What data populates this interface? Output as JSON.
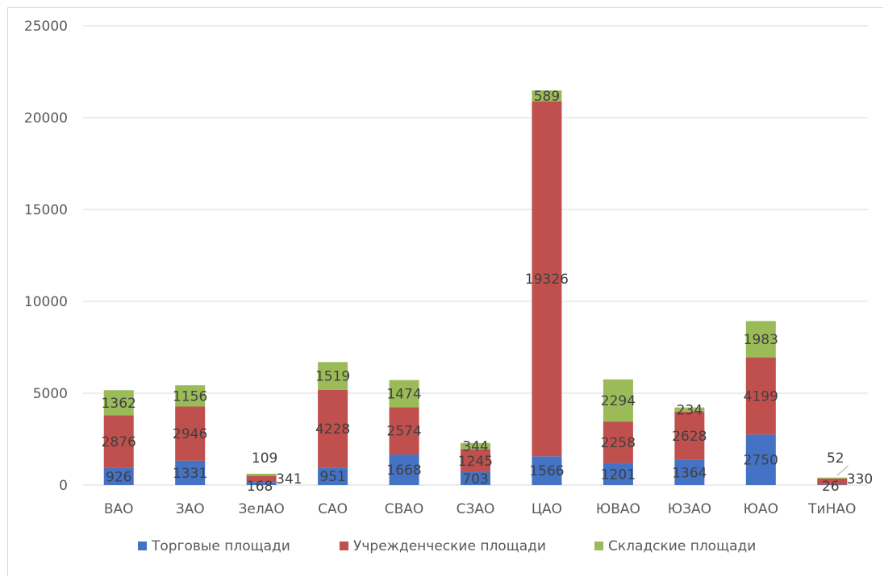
{
  "chart_data": {
    "type": "bar",
    "stacked": true,
    "categories": [
      "ВАО",
      "ЗАО",
      "ЗелАО",
      "САО",
      "СВАО",
      "СЗАО",
      "ЦАО",
      "ЮВАО",
      "ЮЗАО",
      "ЮАО",
      "ТиНАО"
    ],
    "series": [
      {
        "name": "Торговые площади",
        "color": "#4472C4",
        "values": [
          926,
          1331,
          168,
          951,
          1668,
          703,
          1566,
          1201,
          1364,
          2750,
          26
        ]
      },
      {
        "name": "Учрежденческие площади",
        "color": "#C0504D",
        "values": [
          2876,
          2946,
          341,
          4228,
          2574,
          1245,
          19326,
          2258,
          2628,
          4199,
          330
        ]
      },
      {
        "name": "Складские площади",
        "color": "#9BBB59",
        "values": [
          1362,
          1156,
          109,
          1519,
          1474,
          344,
          589,
          2294,
          234,
          1983,
          52
        ]
      }
    ],
    "ylim": [
      0,
      25000
    ],
    "yticks": [
      "0",
      "5000",
      "10000",
      "15000",
      "20000",
      "25000"
    ],
    "grid": true,
    "legend": "bottom",
    "data_labels": true
  }
}
